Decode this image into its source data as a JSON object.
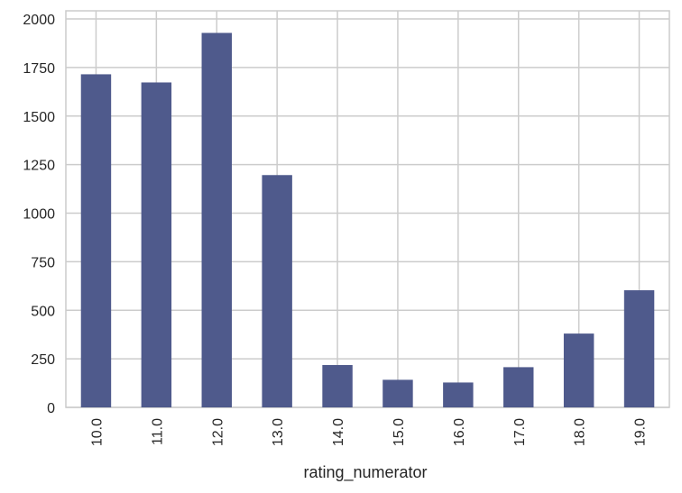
{
  "chart_data": {
    "type": "bar",
    "categories": [
      "10.0",
      "11.0",
      "12.0",
      "13.0",
      "14.0",
      "15.0",
      "16.0",
      "17.0",
      "18.0",
      "19.0"
    ],
    "values": [
      1715,
      1673,
      1928,
      1196,
      218,
      142,
      128,
      207,
      380,
      603
    ],
    "xlabel": "rating_numerator",
    "ylabel": "",
    "ylim": [
      0,
      2000
    ],
    "yticks": [
      0,
      250,
      500,
      750,
      1000,
      1250,
      1500,
      1750,
      2000
    ],
    "grid": true,
    "bar_color": "#4f5a8c",
    "grid_color": "#cccccc"
  }
}
